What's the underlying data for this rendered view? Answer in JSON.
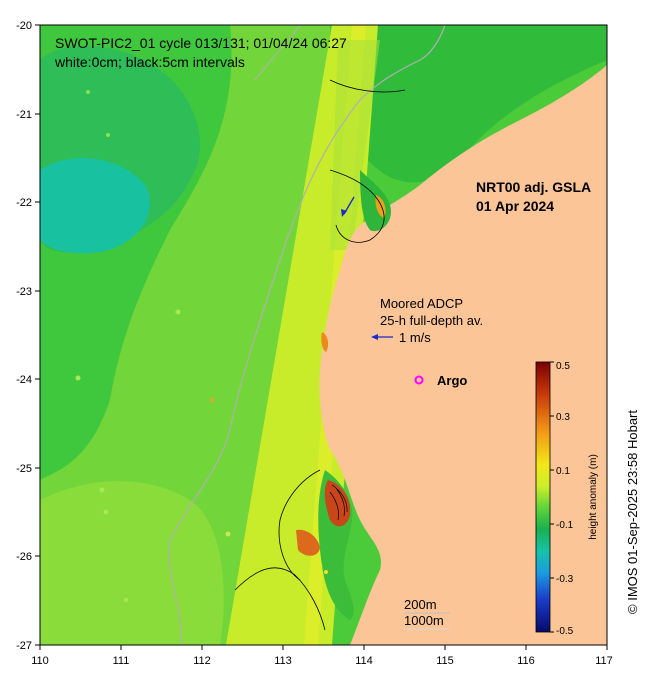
{
  "title_line1": "SWOT-PIC2_01 cycle 013/131; 01/04/24 06:27",
  "title_line2": "white:0cm; black:5cm intervals",
  "product_line1": "NRT00 adj. GSLA",
  "product_line2": "01 Apr 2024",
  "adcp_line1": "Moored ADCP",
  "adcp_line2": "25-h full-depth av.",
  "velocity_scale_label": "1 m/s",
  "argo_label": "Argo",
  "argo_color": "#ff00ff",
  "bathy_200": "200m",
  "bathy_1000": "1000m",
  "credit": "© IMOS 01-Sep-2025 23:58 Hobart",
  "lon_ticks": [
    "110",
    "111",
    "112",
    "113",
    "114",
    "115",
    "116",
    "117"
  ],
  "lat_ticks": [
    "-20",
    "-21",
    "-22",
    "-23",
    "-24",
    "-25",
    "-26",
    "-27"
  ],
  "colorbar": {
    "label": "height anomaly (m)",
    "ticks": [
      "0.5",
      "0.3",
      "0.1",
      "-0.1",
      "-0.3",
      "-0.5"
    ],
    "min": -0.5,
    "max": 0.5
  },
  "colors": {
    "land": "#fbc597",
    "ocean_base": "#3fc43a",
    "swath": "#c9ec2a",
    "coastline_gray": "#b0b0b0"
  }
}
